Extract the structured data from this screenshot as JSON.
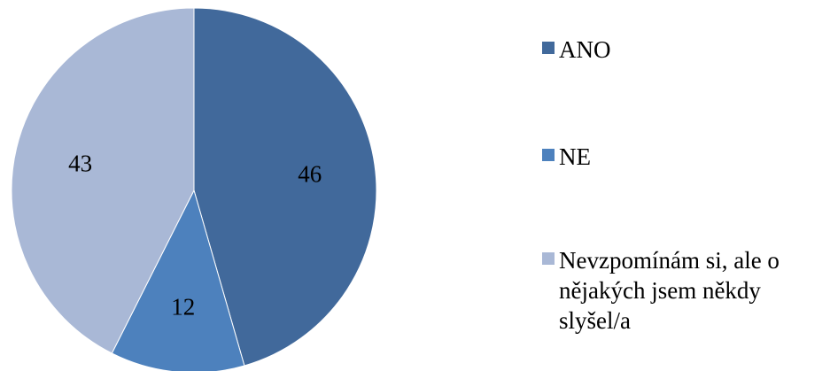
{
  "chart_data": {
    "type": "pie",
    "categories": [
      "ANO",
      "NE",
      "Nevzpomínám si, ale o nějakých jsem někdy slyšel/a"
    ],
    "values": [
      46,
      12,
      43
    ],
    "colors": [
      "#41699B",
      "#4D81BD",
      "#A9B8D6"
    ],
    "data_labels": [
      "46",
      "12",
      "43"
    ],
    "legend": {
      "position": "right",
      "entries": [
        {
          "lines": [
            "ANO"
          ],
          "color": "#41699B"
        },
        {
          "lines": [
            "NE"
          ],
          "color": "#4D81BD"
        },
        {
          "lines": [
            "Nevzpomínám si, ale o",
            "nějakých jsem někdy",
            "slyšel/a"
          ],
          "color": "#A9B8D6"
        }
      ]
    },
    "start_angle": "12 o'clock",
    "direction": "clockwise"
  }
}
